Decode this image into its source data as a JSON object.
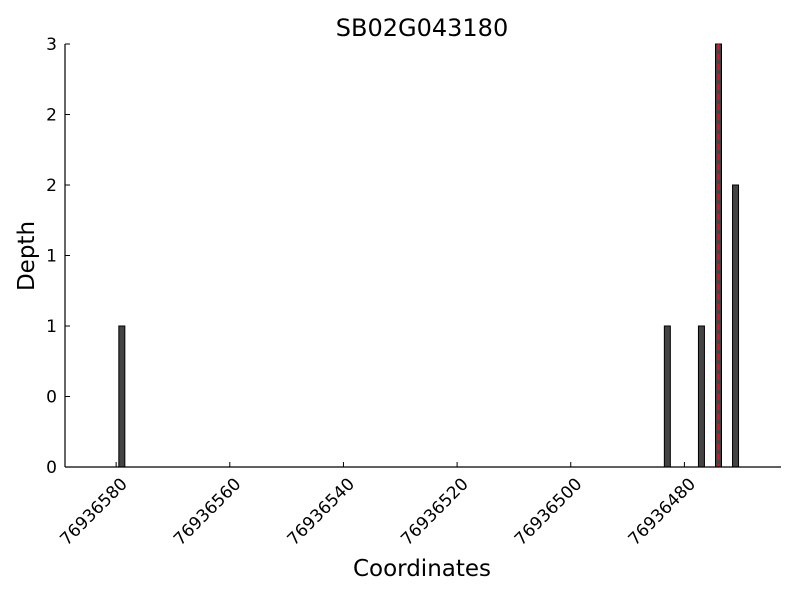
{
  "chart_data": {
    "type": "bar",
    "title": "SB02G043180",
    "xlabel": "Coordinates",
    "ylabel": "Depth",
    "x_reversed": true,
    "xlim": [
      76936589,
      76936463
    ],
    "ylim": [
      0,
      3
    ],
    "x": [
      76936579,
      76936483,
      76936477,
      76936474,
      76936471
    ],
    "values": [
      1,
      1,
      1,
      3,
      2
    ],
    "marker_x": 76936474,
    "marker_color": "#e0102a",
    "bar_color": "#444444",
    "x_ticks": [
      76936580,
      76936560,
      76936540,
      76936520,
      76936500,
      76936480
    ],
    "x_tick_labels": [
      "76936580",
      "76936560",
      "76936540",
      "76936520",
      "76936500",
      "76936480"
    ],
    "y_ticks": [
      0,
      0.5,
      1,
      1.5,
      2,
      2.5,
      3
    ],
    "y_tick_labels": [
      "0",
      "0",
      "1",
      "1",
      "2",
      "2",
      "3"
    ],
    "grid": false,
    "legend": "none"
  }
}
